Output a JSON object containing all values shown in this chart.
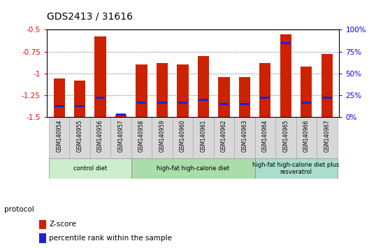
{
  "title": "GDS2413 / 31616",
  "samples": [
    "GSM140954",
    "GSM140955",
    "GSM140956",
    "GSM140957",
    "GSM140958",
    "GSM140959",
    "GSM140960",
    "GSM140961",
    "GSM140962",
    "GSM140963",
    "GSM140964",
    "GSM140965",
    "GSM140966",
    "GSM140967"
  ],
  "zscore": [
    -1.06,
    -1.08,
    -0.58,
    -1.47,
    -0.9,
    -0.88,
    -0.9,
    -0.8,
    -1.04,
    -1.04,
    -0.88,
    -0.55,
    -0.92,
    -0.78
  ],
  "percentile": [
    13,
    13,
    22,
    3,
    17,
    17,
    17,
    20,
    15,
    15,
    22,
    85,
    17,
    22
  ],
  "bar_color": "#cc2200",
  "percentile_color": "#2222cc",
  "ylim_left": [
    -1.5,
    -0.5
  ],
  "ylim_right": [
    0,
    100
  ],
  "yticks_left": [
    -1.5,
    -1.25,
    -1.0,
    -0.75,
    -0.5
  ],
  "yticks_right": [
    0,
    25,
    50,
    75,
    100
  ],
  "ytick_labels_left": [
    "-1.5",
    "-1.25",
    "-1",
    "-0.75",
    "-0.5"
  ],
  "ytick_labels_right": [
    "0%",
    "25%",
    "50%",
    "75%",
    "100%"
  ],
  "groups": [
    {
      "label": "control diet",
      "start": 0,
      "end": 4,
      "color": "#cceecc"
    },
    {
      "label": "high-fat high-calorie diet",
      "start": 4,
      "end": 10,
      "color": "#aaddaa"
    },
    {
      "label": "high-fat high-calorie diet plus\nresveratrol",
      "start": 10,
      "end": 14,
      "color": "#aaddcc"
    }
  ],
  "protocol_label": "protocol",
  "legend_zscore": "Z-score",
  "legend_percentile": "percentile rank within the sample",
  "sample_box_color": "#d8d8d8",
  "plot_bg_color": "#ffffff",
  "grid_color": "#555555",
  "bar_width": 0.55
}
